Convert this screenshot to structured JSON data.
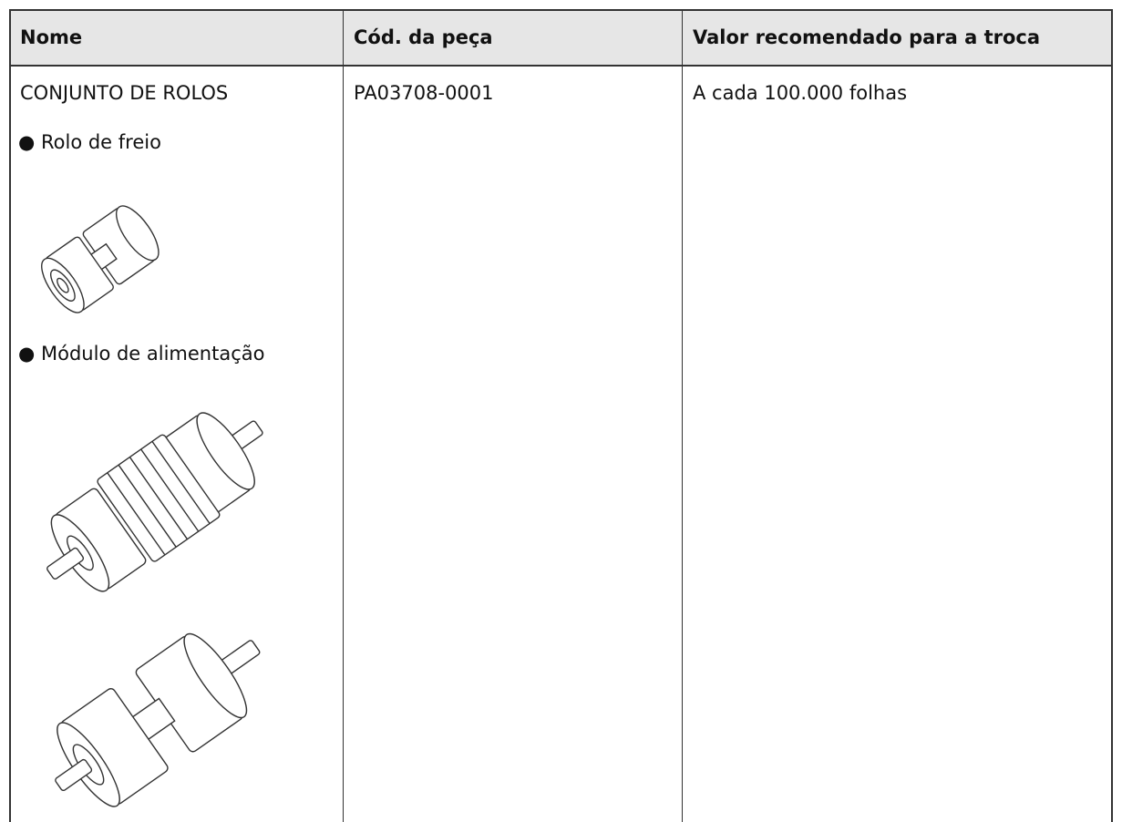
{
  "table": {
    "header": [
      "Nome",
      "Cód. da peça",
      "Valor recomendado para a troca"
    ],
    "rows": [
      {
        "name": "CONJUNTO DE ROLOS",
        "items": [
          "● Rolo de freio",
          "● Módulo de alimentação"
        ],
        "part_code": "PA03708-0001",
        "interval": "A cada 100.000 folhas"
      }
    ]
  }
}
